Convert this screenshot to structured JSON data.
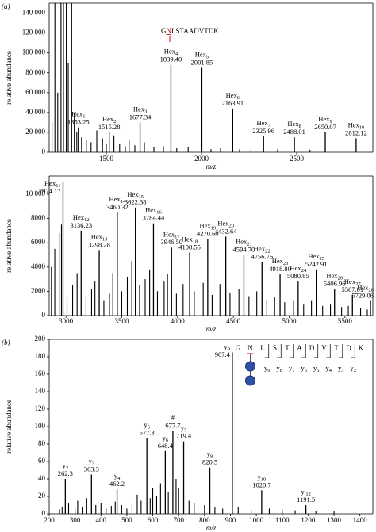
{
  "chart_data": [
    {
      "type": "spectrum",
      "panel_label": "(a)",
      "ylabel": "relative abundance",
      "xlabel": "m/z",
      "color": "#000000",
      "xlim": [
        1200,
        2900
      ],
      "ylim": [
        0,
        150000
      ],
      "xticks": [
        1500,
        2000,
        2500
      ],
      "yticks": [
        0,
        {
          "value": 20000,
          "label": "20 000"
        },
        {
          "value": 40000,
          "label": "40 000"
        },
        {
          "value": 60000,
          "label": "60 000"
        },
        {
          "value": 80000,
          "label": "80 000"
        },
        {
          "value": 100000,
          "label": "100 000"
        },
        {
          "value": 120000,
          "label": "120 000"
        },
        {
          "value": 140000,
          "label": "140 000"
        }
      ],
      "sequence": [
        "G",
        "N",
        "LSTAADVTDK"
      ],
      "peaks": {
        "x": [
          1215,
          1230,
          1245,
          1262,
          1275,
          1290,
          1300,
          1318,
          1332,
          1345,
          1370,
          1395,
          1420,
          1450,
          1480,
          1500,
          1540,
          1570,
          1600,
          1620,
          1650,
          1700,
          1750,
          1800,
          1870,
          1930,
          2050,
          2100,
          2200,
          2260,
          2400,
          2570
        ],
        "values": [
          30000,
          150000,
          60000,
          150000,
          150000,
          150000,
          90000,
          150000,
          40000,
          20000,
          15000,
          12000,
          10000,
          22000,
          14000,
          9000,
          17000,
          8000,
          6000,
          12000,
          7000,
          10000,
          5000,
          6000,
          4000,
          5000,
          3000,
          4000,
          3000,
          2500,
          3000,
          2500
        ]
      },
      "annotations": [
        {
          "name": "Hex",
          "sub": "1",
          "label": "1353.25",
          "x": 1353.25,
          "y": 25000
        },
        {
          "name": "Hex",
          "sub": "2",
          "label": "1515.28",
          "x": 1515.28,
          "y": 20000
        },
        {
          "name": "Hex",
          "sub": "3",
          "label": "1677.34",
          "x": 1677.34,
          "y": 30000
        },
        {
          "name": "Hex",
          "sub": "4",
          "label": "1839.40",
          "x": 1839.4,
          "y": 88000
        },
        {
          "name": "Hex",
          "sub": "5",
          "label": "2001.85",
          "x": 2001.85,
          "y": 85000
        },
        {
          "name": "Hex",
          "sub": "6",
          "label": "2163.91",
          "x": 2163.91,
          "y": 44000
        },
        {
          "name": "Hex",
          "sub": "7",
          "label": "2325.96",
          "x": 2325.96,
          "y": 16000
        },
        {
          "name": "Hex",
          "sub": "8",
          "label": "2488.01",
          "x": 2488.01,
          "y": 15000
        },
        {
          "name": "Hex",
          "sub": "9",
          "label": "2650.07",
          "x": 2650.07,
          "y": 20000
        },
        {
          "name": "Hex",
          "sub": "10",
          "label": "2812.12",
          "x": 2812.12,
          "y": 14000
        }
      ]
    },
    {
      "type": "spectrum",
      "ylabel": "relative abundance",
      "xlabel": "m/z",
      "color": "#000000",
      "xlim": [
        2850,
        5750
      ],
      "ylim": [
        0,
        11500
      ],
      "xticks": [
        3000,
        3500,
        4000,
        4500,
        5000,
        5500
      ],
      "yticks": [
        0,
        2000,
        4000,
        6000,
        8000,
        {
          "value": 10000,
          "label": "10 000"
        }
      ],
      "peaks": {
        "x": [
          2870,
          2900,
          2940,
          2960,
          3010,
          3060,
          3100,
          3180,
          3230,
          3260,
          3340,
          3390,
          3420,
          3500,
          3550,
          3590,
          3660,
          3710,
          3750,
          3820,
          3880,
          3910,
          3990,
          4050,
          4150,
          4230,
          4310,
          4380,
          4470,
          4550,
          4640,
          4710,
          4800,
          4870,
          4960,
          5040,
          5130,
          5200,
          5300,
          5370,
          5470,
          5530,
          5640,
          5700
        ],
        "values": [
          4000,
          5500,
          6800,
          7500,
          1500,
          2500,
          3500,
          1500,
          2200,
          2800,
          1200,
          1800,
          3500,
          2000,
          3200,
          4500,
          2500,
          3000,
          3800,
          2000,
          2800,
          3400,
          1800,
          2600,
          2000,
          2700,
          1700,
          2600,
          1900,
          2200,
          1600,
          2000,
          1300,
          1500,
          1100,
          1200,
          900,
          1200,
          800,
          900,
          700,
          800,
          600,
          500
        ]
      },
      "annotations": [
        {
          "name": "Hex",
          "sub": "11",
          "label": "2974.17",
          "x": 2974.17,
          "y": 11000
        },
        {
          "name": "Hex",
          "sub": "12",
          "label": "3136.23",
          "x": 3136.23,
          "y": 7000
        },
        {
          "name": "Hex",
          "sub": "13",
          "label": "3298.28",
          "x": 3298.28,
          "y": 5400
        },
        {
          "name": "Hex",
          "sub": "14",
          "label": "3460.32",
          "x": 3460.32,
          "y": 8500
        },
        {
          "name": "Hex",
          "sub": "15",
          "label": "3622.38",
          "x": 3622.38,
          "y": 8900
        },
        {
          "name": "Hex",
          "sub": "16",
          "label": "3784.44",
          "x": 3784.44,
          "y": 7600
        },
        {
          "name": "Hex",
          "sub": "17",
          "label": "3946.50",
          "x": 3946.5,
          "y": 5600
        },
        {
          "name": "Hex",
          "sub": "18",
          "label": "4108.55",
          "x": 4108.55,
          "y": 5200
        },
        {
          "name": "Hex",
          "sub": "19",
          "label": "4270.60",
          "x": 4270.6,
          "y": 6300
        },
        {
          "name": "Hex",
          "sub": "20",
          "label": "4432.64",
          "x": 4432.64,
          "y": 6500
        },
        {
          "name": "Hex",
          "sub": "21",
          "label": "4594.70",
          "x": 4594.7,
          "y": 5000
        },
        {
          "name": "Hex",
          "sub": "22",
          "label": "4756.76",
          "x": 4756.76,
          "y": 4400
        },
        {
          "name": "Hex",
          "sub": "23",
          "label": "4918.80",
          "x": 4918.8,
          "y": 3400
        },
        {
          "name": "Hex",
          "sub": "24",
          "label": "5080.85",
          "x": 5080.85,
          "y": 2800
        },
        {
          "name": "Hex",
          "sub": "25",
          "label": "5242.91",
          "x": 5242.91,
          "y": 3800
        },
        {
          "name": "Hex",
          "sub": "26",
          "label": "5406.96",
          "x": 5406.96,
          "y": 2200
        },
        {
          "name": "Hex",
          "sub": "27",
          "label": "5567.01",
          "x": 5567.01,
          "y": 1700
        },
        {
          "name": "Hex",
          "sub": "28",
          "label": "5729.06",
          "x": 5729.06,
          "y": 1200
        }
      ]
    },
    {
      "type": "spectrum",
      "panel_label": "(b)",
      "ylabel": "relative abundance",
      "xlabel": "m/z",
      "color": "#000000",
      "xlim": [
        200,
        1450
      ],
      "ylim": [
        0,
        200
      ],
      "xticks": [
        200,
        300,
        400,
        500,
        600,
        700,
        800,
        900,
        1000,
        1100,
        1200,
        1300,
        1400
      ],
      "yticks": [
        0,
        20,
        40,
        60,
        80,
        100,
        120,
        140,
        160,
        180,
        200
      ],
      "residues": [
        "G",
        "N",
        "L",
        "S",
        "T",
        "A",
        "D",
        "V",
        "T",
        "D",
        "K"
      ],
      "fragments": [
        {
          "name": "y",
          "sub": "9"
        },
        {
          "name": "y",
          "sub": "8"
        },
        {
          "name": "y",
          "sub": "7"
        },
        {
          "name": "y",
          "sub": "6"
        },
        {
          "name": "y",
          "sub": "5"
        },
        {
          "name": "y",
          "sub": "4"
        },
        {
          "name": "y",
          "sub": "3"
        },
        {
          "name": "y",
          "sub": "2"
        }
      ],
      "peaks": {
        "x": [
          240,
          250,
          275,
          300,
          310,
          330,
          345,
          380,
          400,
          420,
          440,
          455,
          480,
          500,
          520,
          540,
          555,
          590,
          600,
          615,
          630,
          660,
          690,
          700,
          740,
          760,
          800,
          840,
          870,
          930,
          980,
          1050,
          1100,
          1150,
          1230,
          1300
        ],
        "values": [
          5,
          8,
          12,
          6,
          15,
          8,
          18,
          10,
          12,
          6,
          9,
          14,
          10,
          6,
          12,
          22,
          15,
          18,
          30,
          20,
          35,
          25,
          40,
          30,
          15,
          12,
          10,
          8,
          6,
          8,
          5,
          6,
          5,
          4,
          3,
          3
        ]
      },
      "annotations": [
        {
          "name": "y",
          "sub": "2",
          "label": "262.3",
          "x": 262.3,
          "y": 40
        },
        {
          "name": "y",
          "sub": "3",
          "label": "363.3",
          "x": 363.3,
          "y": 45
        },
        {
          "name": "y",
          "sub": "4",
          "label": "462.2",
          "x": 462.2,
          "y": 28
        },
        {
          "name": "y",
          "sub": "5",
          "label": "577.3",
          "x": 577.3,
          "y": 87
        },
        {
          "name": "y",
          "sub": "6",
          "label": "648.4",
          "x": 648.4,
          "y": 72
        },
        {
          "name": "#",
          "label": "677.7",
          "x": 677.7,
          "y": 95
        },
        {
          "name": "y",
          "sub": "7",
          "label": "719.4",
          "x": 719.4,
          "y": 83
        },
        {
          "name": "y",
          "sub": "8",
          "label": "820.5",
          "x": 820.5,
          "y": 53
        },
        {
          "name": "y",
          "sub": "9",
          "label": "907.4",
          "x": 907.4,
          "y": 185
        },
        {
          "name": "y",
          "sub": "10",
          "label": "1020.7",
          "x": 1020.7,
          "y": 27
        },
        {
          "name": "y′",
          "sub": "12",
          "label": "1191.5",
          "x": 1191.5,
          "y": 10
        }
      ]
    }
  ]
}
